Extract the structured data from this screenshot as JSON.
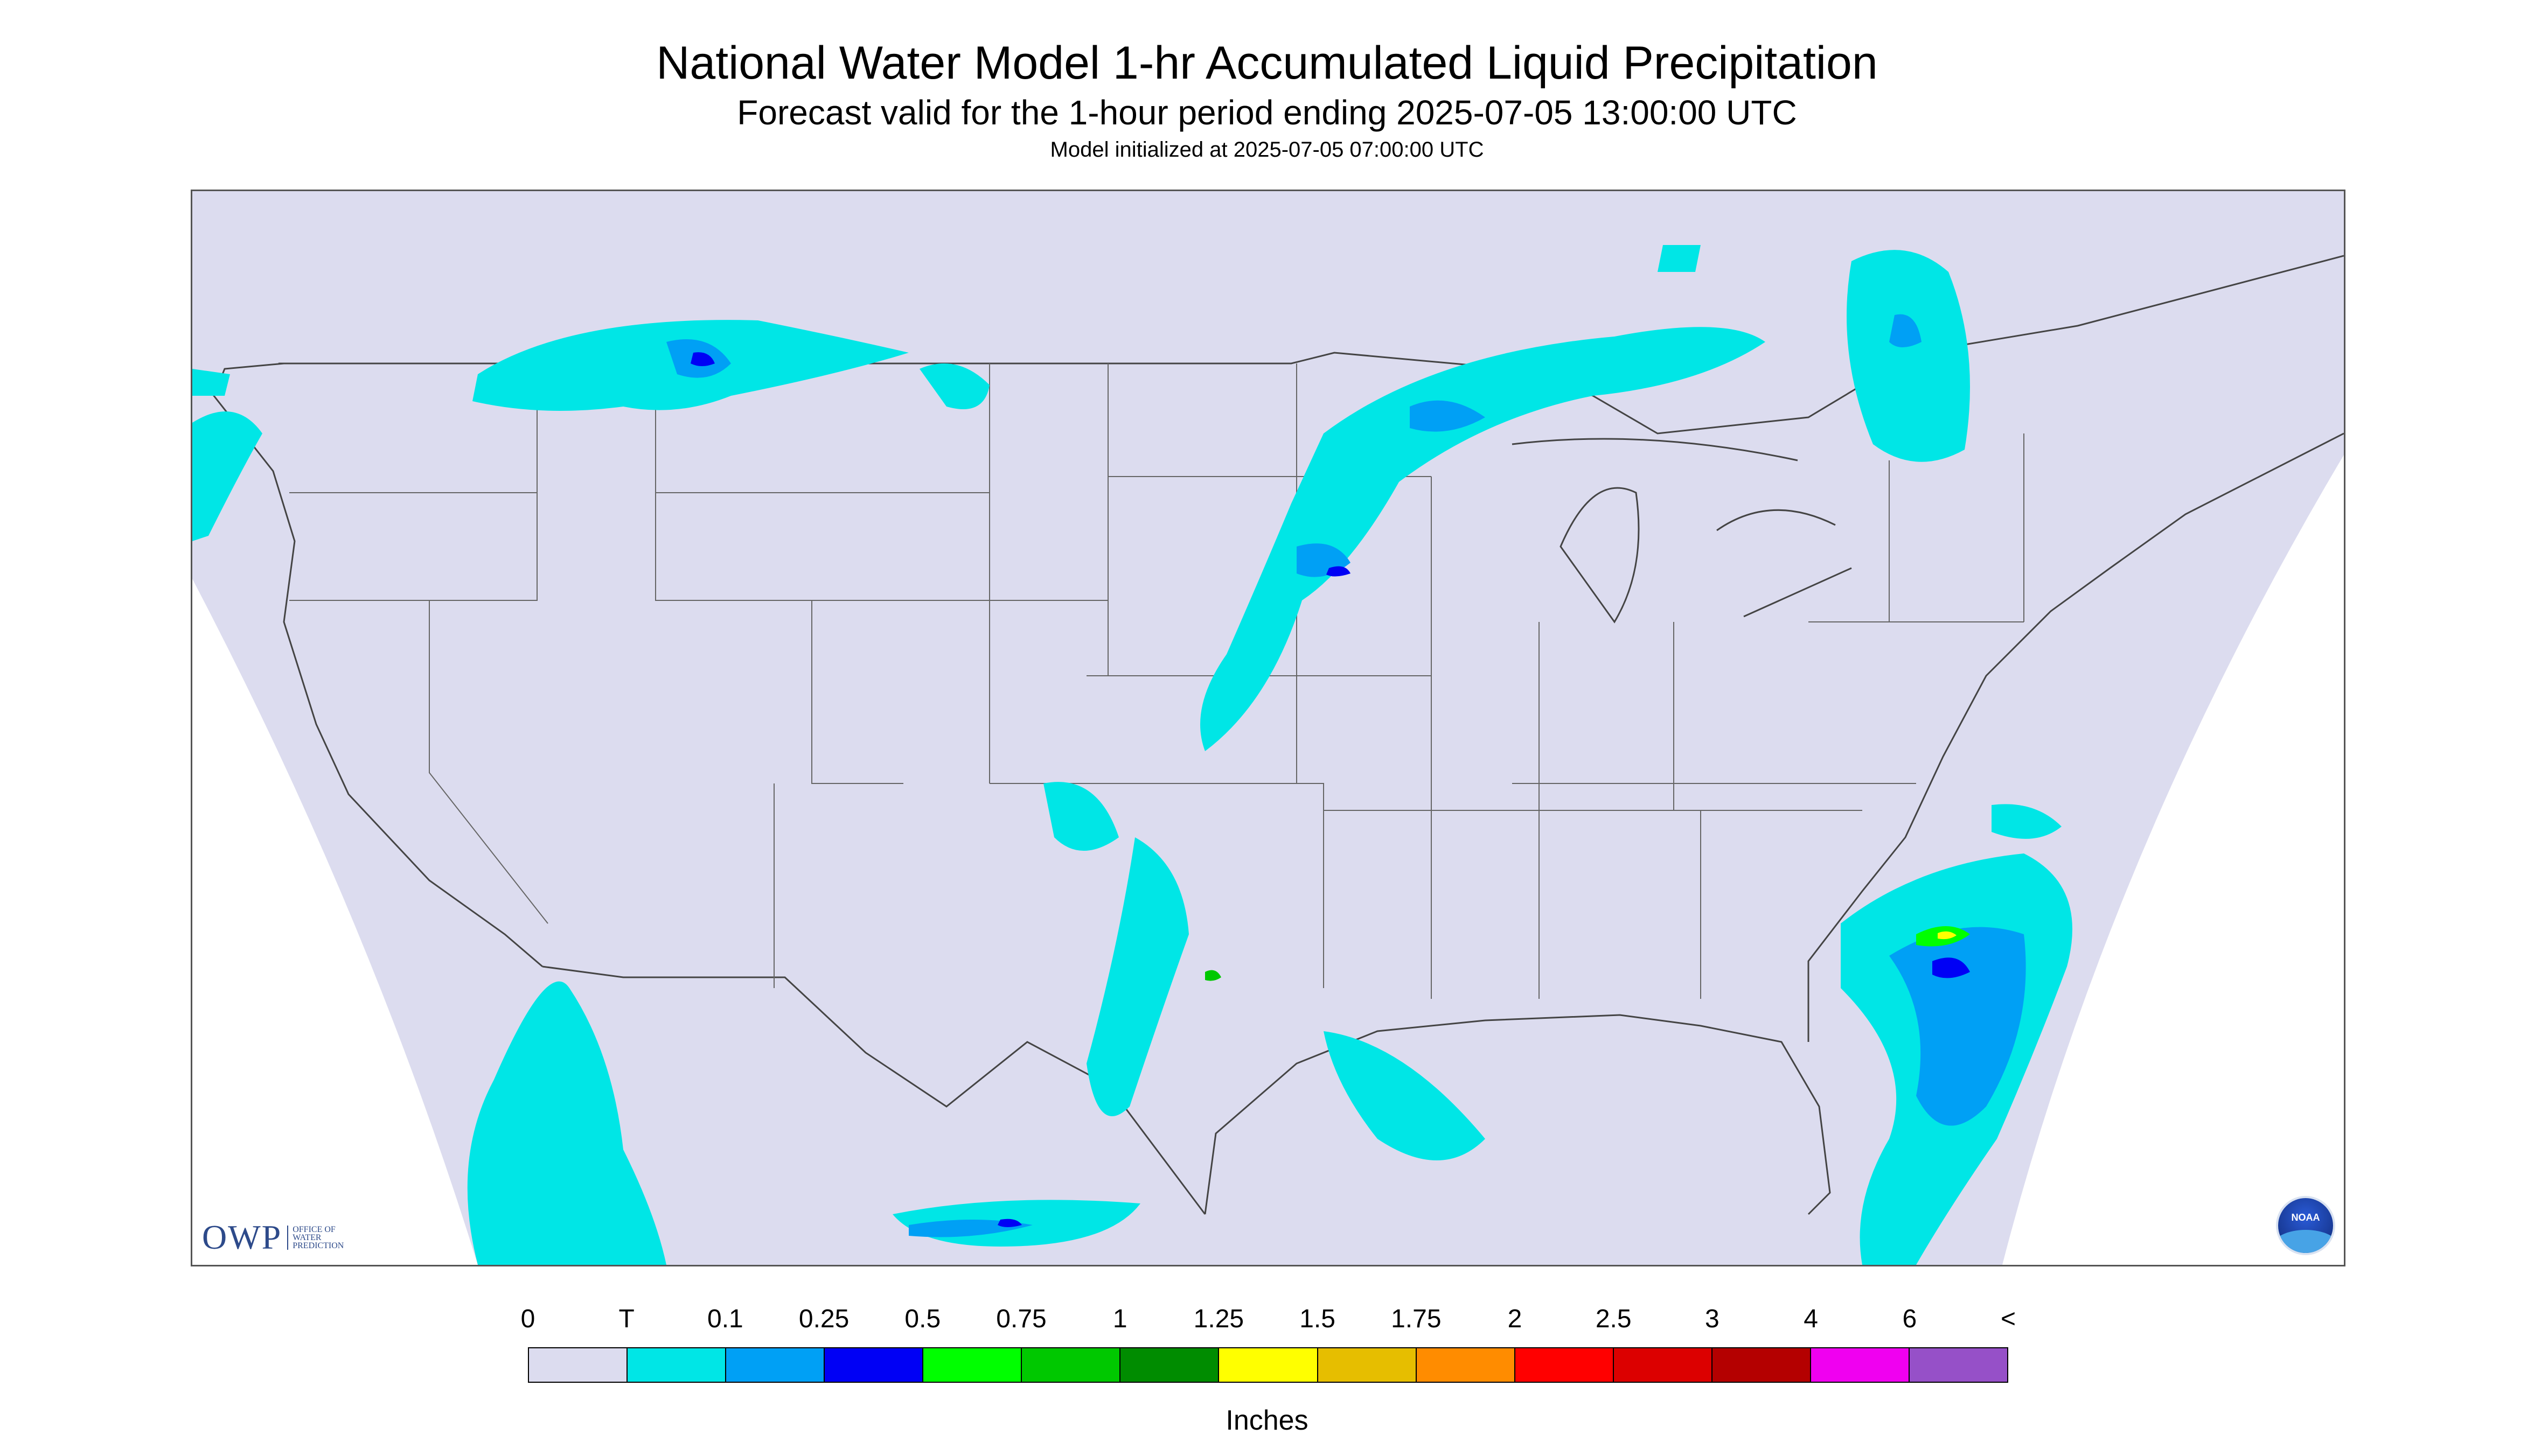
{
  "header": {
    "title": "National Water Model 1-hr Accumulated Liquid Precipitation",
    "subtitle": "Forecast valid for the 1-hour period ending 2025-07-05 13:00:00 UTC",
    "init": "Model initialized at 2025-07-05 07:00:00 UTC"
  },
  "logos": {
    "owp_short": "OWP",
    "owp_long": "Office of Water Prediction",
    "noaa": "NOAA"
  },
  "legend": {
    "units": "Inches",
    "labels": [
      "0",
      "T",
      "0.1",
      "0.25",
      "0.5",
      "0.75",
      "1",
      "1.25",
      "1.5",
      "1.75",
      "2",
      "2.5",
      "3",
      "4",
      "6",
      "<"
    ],
    "colors": [
      "#dcdcef",
      "#00e6e6",
      "#00a0f5",
      "#0000f5",
      "#00ff00",
      "#00c800",
      "#008c00",
      "#ffff00",
      "#e6be00",
      "#ff8c00",
      "#ff0000",
      "#dc0000",
      "#b40000",
      "#f000f0",
      "#9650c8"
    ]
  },
  "colors": {
    "no_data": "#ffffff",
    "background": "#dcdcef",
    "trace": "#00e6e6"
  }
}
